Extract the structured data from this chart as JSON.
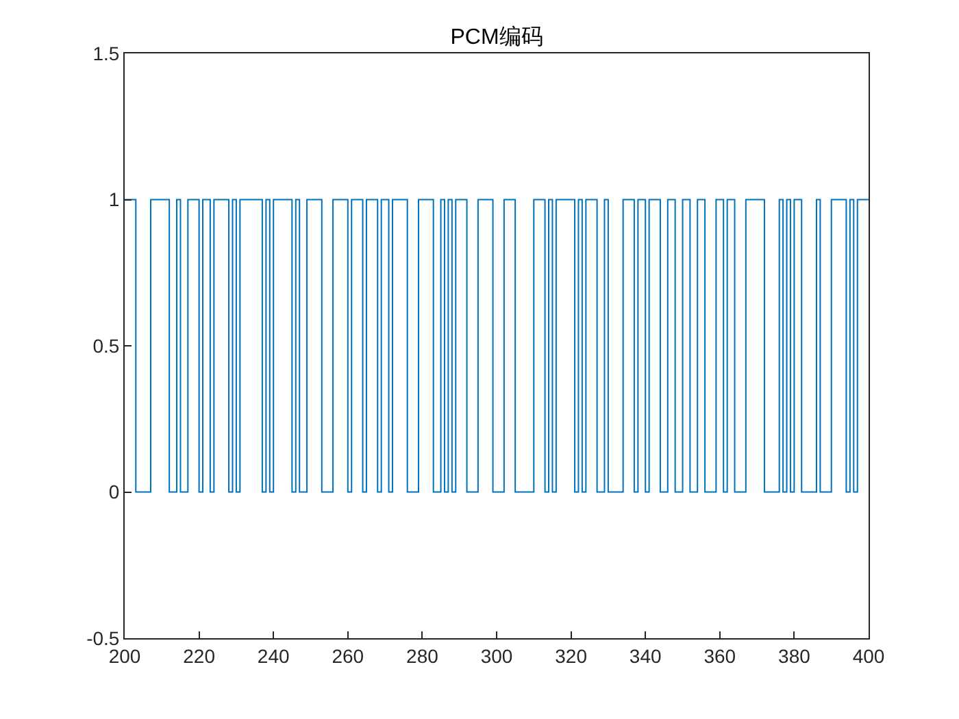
{
  "chart_data": {
    "type": "step",
    "title": "PCM编码",
    "x": [
      200,
      203,
      207,
      212,
      214,
      215,
      217,
      220,
      221,
      223,
      224,
      228,
      229,
      230,
      231,
      237,
      238,
      239,
      240,
      245,
      246,
      247,
      249,
      253,
      256,
      260,
      261,
      264,
      265,
      268,
      269,
      271,
      272,
      276,
      279,
      283,
      285,
      286,
      287,
      288,
      289,
      292,
      295,
      299,
      302,
      305,
      310,
      313,
      314,
      315,
      316,
      321,
      322,
      323,
      324,
      327,
      329,
      330,
      334,
      337,
      338,
      340,
      341,
      344,
      346,
      348,
      350,
      352,
      354,
      356,
      359,
      361,
      362,
      364,
      367,
      372,
      376,
      377,
      378,
      379,
      380,
      382,
      386,
      387,
      390,
      394,
      395,
      396,
      397,
      400
    ],
    "series": [
      {
        "color": "#0072bd",
        "values": [
          1,
          0,
          1,
          0,
          1,
          0,
          1,
          0,
          1,
          0,
          1,
          0,
          1,
          0,
          1,
          0,
          1,
          0,
          1,
          0,
          1,
          0,
          1,
          0,
          1,
          0,
          1,
          0,
          1,
          0,
          1,
          0,
          1,
          0,
          1,
          0,
          1,
          0,
          1,
          0,
          1,
          0,
          1,
          0,
          1,
          0,
          1,
          0,
          1,
          0,
          1,
          0,
          1,
          0,
          1,
          0,
          1,
          0,
          1,
          0,
          1,
          0,
          1,
          0,
          1,
          0,
          1,
          0,
          1,
          0,
          1,
          0,
          1,
          0,
          1,
          0,
          1,
          0,
          1,
          0,
          1,
          0,
          1,
          0,
          1,
          0,
          1,
          0,
          1,
          1
        ]
      }
    ],
    "xlim": [
      200,
      400
    ],
    "xticks": [
      200,
      220,
      240,
      260,
      280,
      300,
      320,
      340,
      360,
      380,
      400
    ],
    "ylim": [
      -0.5,
      1.5
    ],
    "yticks": [
      -0.5,
      0,
      0.5,
      1,
      1.5
    ]
  }
}
